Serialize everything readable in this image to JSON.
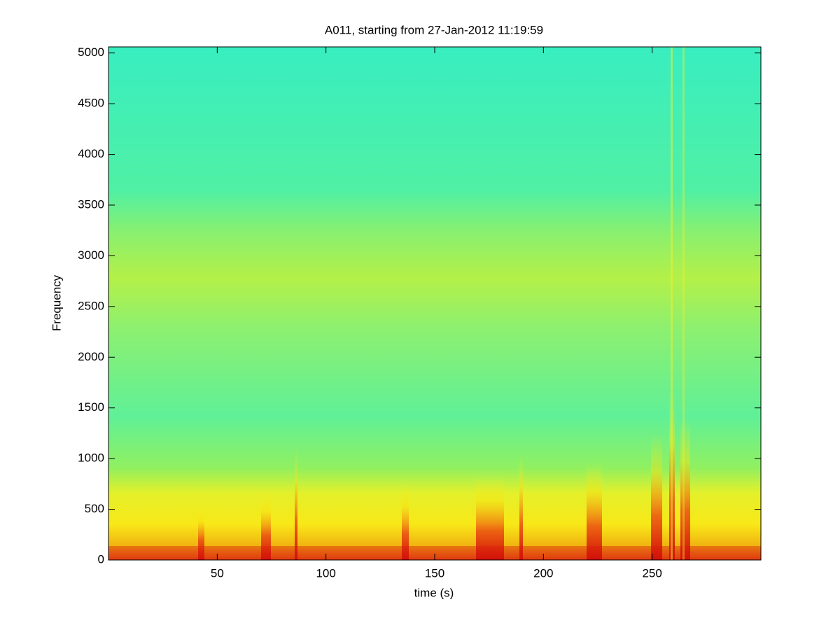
{
  "chart_data": {
    "type": "spectrogram",
    "title": "A011, starting from 27-Jan-2012 11:19:59",
    "xlabel": "time (s)",
    "ylabel": "Frequency",
    "xlim": [
      0,
      300
    ],
    "xticks": [
      50,
      100,
      150,
      200,
      250
    ],
    "ylim": [
      0,
      5060
    ],
    "yticks": [
      0,
      500,
      1000,
      1500,
      2000,
      2500,
      3000,
      3500,
      4000,
      4500,
      5000
    ],
    "grid": false
  }
}
